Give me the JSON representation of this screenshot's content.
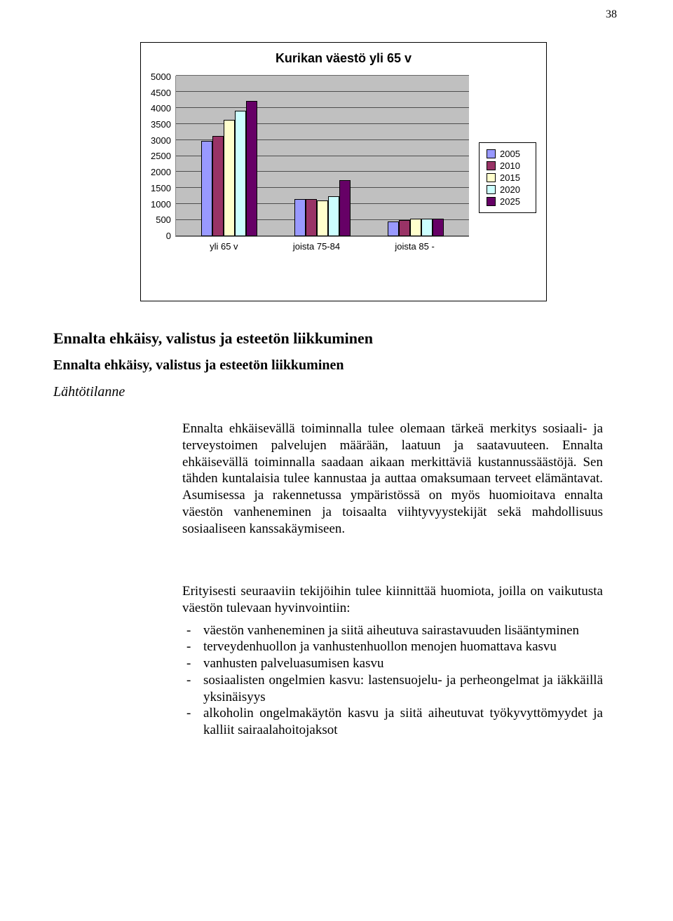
{
  "page_number": "38",
  "chart": {
    "title": "Kurikan väestö yli 65 v",
    "type": "bar",
    "ymax": 5000,
    "ystep": 500,
    "yticks": [
      "5000",
      "4500",
      "4000",
      "3500",
      "3000",
      "2500",
      "2000",
      "1500",
      "1000",
      "500",
      "0"
    ],
    "categories": [
      "yli 65 v",
      "joista 75-84",
      "joista 85 -"
    ],
    "series": [
      {
        "label": "2005",
        "color": "#9999ff"
      },
      {
        "label": "2010",
        "color": "#993366"
      },
      {
        "label": "2015",
        "color": "#ffffcc"
      },
      {
        "label": "2020",
        "color": "#ccffff"
      },
      {
        "label": "2025",
        "color": "#660066"
      }
    ],
    "values": [
      [
        2950,
        3100,
        3600,
        3900,
        4200
      ],
      [
        1150,
        1150,
        1100,
        1250,
        1750
      ],
      [
        450,
        500,
        550,
        550,
        550
      ]
    ],
    "plot_bg": "#c0c0c0",
    "grid_color": "#000000"
  },
  "heading1": "Ennalta ehkäisy, valistus ja esteetön liikkuminen",
  "heading2": "Ennalta ehkäisy, valistus ja esteetön liikkuminen",
  "heading3": "Lähtötilanne",
  "para1": "Ennalta ehkäisevällä toiminnalla tulee olemaan tärkeä merkitys sosiaali- ja terveystoimen palvelujen määrään, laatuun ja saatavuuteen. Ennalta ehkäisevällä toiminnalla saadaan aikaan merkittäviä kustannussäästöjä. Sen tähden kuntalaisia tulee kannustaa ja auttaa omaksumaan terveet elämäntavat. Asumisessa ja rakennetussa ympäristössä on myös huomioitava ennalta väestön vanheneminen ja toisaalta viihtyvyystekijät sekä mahdollisuus sosiaaliseen kanssakäymiseen.",
  "para2_intro": "Erityisesti seuraaviin tekijöihin tulee kiinnittää huomiota, joilla on vaikutusta väestön tulevaan hyvinvointiin:",
  "bullets": [
    "väestön vanheneminen ja siitä aiheutuva sairastavuuden lisääntyminen",
    "terveydenhuollon ja vanhustenhuollon menojen huomattava kasvu",
    "vanhusten palveluasumisen kasvu",
    "sosiaalisten ongelmien kasvu: lastensuojelu- ja perheongelmat ja iäkkäillä yksinäisyys",
    "alkoholin ongelmakäytön kasvu ja siitä aiheutuvat työkyvyttömyydet ja kalliit sairaalahoitojaksot"
  ],
  "bullet_marker": "-"
}
